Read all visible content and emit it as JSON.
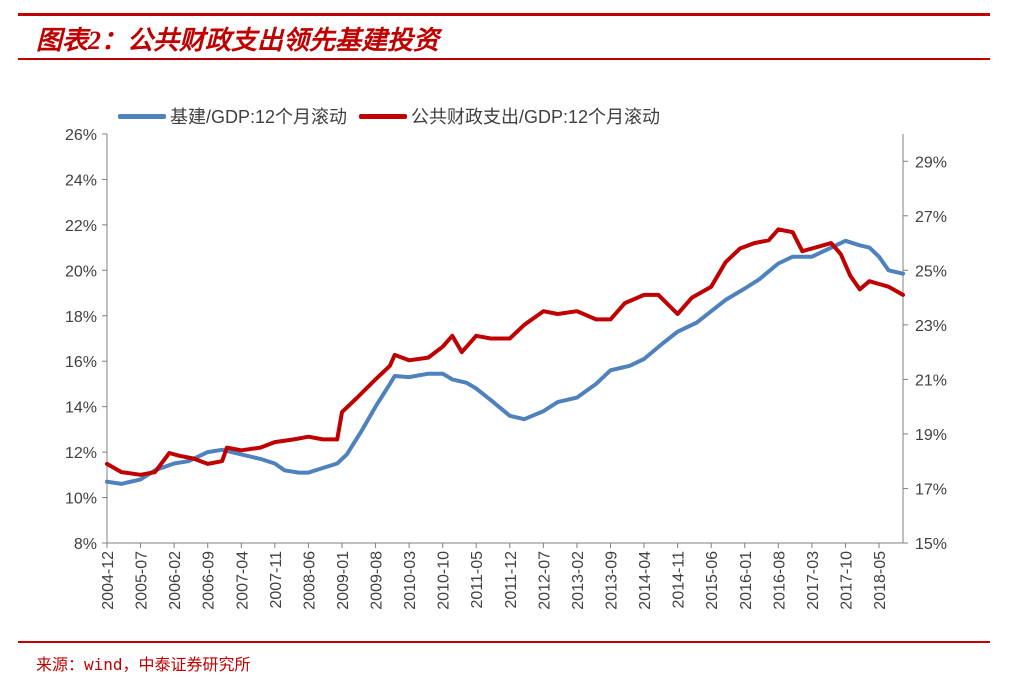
{
  "header": {
    "title": "图表2：公共财政支出领先基建投资"
  },
  "footer": {
    "source": "来源：wind，中泰证券研究所"
  },
  "colors": {
    "accent": "#c00000",
    "series_infra": "#4f81bd",
    "series_fiscal": "#c00000"
  },
  "chart_data": {
    "type": "line",
    "title": "",
    "xlabel": "",
    "ylabel": "",
    "legend_position": "top-left",
    "grid": false,
    "x_tick_labels": [
      "2004-12",
      "2005-07",
      "2006-02",
      "2006-09",
      "2007-04",
      "2007-11",
      "2008-06",
      "2009-01",
      "2009-08",
      "2010-03",
      "2010-10",
      "2011-05",
      "2011-12",
      "2012-07",
      "2013-02",
      "2013-09",
      "2014-04",
      "2014-11",
      "2015-06",
      "2016-01",
      "2016-08",
      "2017-03",
      "2017-10",
      "2018-05"
    ],
    "x_range": [
      "2004-12",
      "2018-10"
    ],
    "y_left": {
      "ticks": [
        "8%",
        "10%",
        "12%",
        "14%",
        "16%",
        "18%",
        "20%",
        "22%",
        "24%",
        "26%"
      ],
      "lim": [
        8,
        26
      ]
    },
    "y_right": {
      "ticks": [
        "15%",
        "17%",
        "19%",
        "21%",
        "23%",
        "25%",
        "27%",
        "29%"
      ],
      "lim": [
        15,
        30
      ]
    },
    "series": [
      {
        "name": "基建/GDP:12个月滚动",
        "axis": "left",
        "points": [
          [
            "2004-12",
            10.7
          ],
          [
            "2005-03",
            10.6
          ],
          [
            "2005-07",
            10.8
          ],
          [
            "2005-10",
            11.2
          ],
          [
            "2006-02",
            11.5
          ],
          [
            "2006-05",
            11.6
          ],
          [
            "2006-09",
            12.0
          ],
          [
            "2006-12",
            12.1
          ],
          [
            "2007-04",
            11.9
          ],
          [
            "2007-08",
            11.7
          ],
          [
            "2007-11",
            11.5
          ],
          [
            "2008-01",
            11.2
          ],
          [
            "2008-04",
            11.1
          ],
          [
            "2008-06",
            11.1
          ],
          [
            "2008-09",
            11.3
          ],
          [
            "2008-12",
            11.5
          ],
          [
            "2009-02",
            11.9
          ],
          [
            "2009-05",
            12.9
          ],
          [
            "2009-08",
            14.0
          ],
          [
            "2009-11",
            15.0
          ],
          [
            "2009-12",
            15.35
          ],
          [
            "2010-03",
            15.3
          ],
          [
            "2010-07",
            15.45
          ],
          [
            "2010-10",
            15.45
          ],
          [
            "2010-12",
            15.2
          ],
          [
            "2011-03",
            15.05
          ],
          [
            "2011-05",
            14.8
          ],
          [
            "2011-08",
            14.3
          ],
          [
            "2011-12",
            13.6
          ],
          [
            "2012-03",
            13.45
          ],
          [
            "2012-07",
            13.8
          ],
          [
            "2012-10",
            14.2
          ],
          [
            "2013-02",
            14.4
          ],
          [
            "2013-06",
            15.0
          ],
          [
            "2013-09",
            15.6
          ],
          [
            "2014-01",
            15.8
          ],
          [
            "2014-04",
            16.1
          ],
          [
            "2014-08",
            16.8
          ],
          [
            "2014-11",
            17.3
          ],
          [
            "2015-03",
            17.7
          ],
          [
            "2015-06",
            18.2
          ],
          [
            "2015-09",
            18.7
          ],
          [
            "2016-01",
            19.2
          ],
          [
            "2016-04",
            19.6
          ],
          [
            "2016-08",
            20.3
          ],
          [
            "2016-11",
            20.6
          ],
          [
            "2017-03",
            20.6
          ],
          [
            "2017-06",
            20.9
          ],
          [
            "2017-10",
            21.3
          ],
          [
            "2018-01",
            21.1
          ],
          [
            "2018-03",
            21.0
          ],
          [
            "2018-05",
            20.6
          ],
          [
            "2018-07",
            20.0
          ],
          [
            "2018-10",
            19.85
          ]
        ]
      },
      {
        "name": "公共财政支出/GDP:12个月滚动",
        "axis": "right",
        "points": [
          [
            "2004-12",
            17.9
          ],
          [
            "2005-03",
            17.6
          ],
          [
            "2005-07",
            17.5
          ],
          [
            "2005-10",
            17.6
          ],
          [
            "2006-01",
            18.3
          ],
          [
            "2006-03",
            18.2
          ],
          [
            "2006-06",
            18.1
          ],
          [
            "2006-09",
            17.9
          ],
          [
            "2006-12",
            18.0
          ],
          [
            "2007-01",
            18.5
          ],
          [
            "2007-04",
            18.4
          ],
          [
            "2007-08",
            18.5
          ],
          [
            "2007-11",
            18.7
          ],
          [
            "2008-03",
            18.8
          ],
          [
            "2008-06",
            18.9
          ],
          [
            "2008-09",
            18.8
          ],
          [
            "2008-12",
            18.8
          ],
          [
            "2009-01",
            19.8
          ],
          [
            "2009-04",
            20.3
          ],
          [
            "2009-08",
            21.0
          ],
          [
            "2009-11",
            21.5
          ],
          [
            "2009-12",
            21.9
          ],
          [
            "2010-03",
            21.7
          ],
          [
            "2010-07",
            21.8
          ],
          [
            "2010-10",
            22.2
          ],
          [
            "2010-12",
            22.6
          ],
          [
            "2011-02",
            22.0
          ],
          [
            "2011-05",
            22.6
          ],
          [
            "2011-08",
            22.5
          ],
          [
            "2011-12",
            22.5
          ],
          [
            "2012-03",
            23.0
          ],
          [
            "2012-07",
            23.5
          ],
          [
            "2012-10",
            23.4
          ],
          [
            "2013-02",
            23.5
          ],
          [
            "2013-06",
            23.2
          ],
          [
            "2013-09",
            23.2
          ],
          [
            "2013-12",
            23.8
          ],
          [
            "2014-04",
            24.1
          ],
          [
            "2014-07",
            24.1
          ],
          [
            "2014-11",
            23.4
          ],
          [
            "2015-02",
            24.0
          ],
          [
            "2015-06",
            24.4
          ],
          [
            "2015-09",
            25.3
          ],
          [
            "2015-12",
            25.8
          ],
          [
            "2016-03",
            26.0
          ],
          [
            "2016-06",
            26.1
          ],
          [
            "2016-08",
            26.5
          ],
          [
            "2016-11",
            26.4
          ],
          [
            "2017-01",
            25.7
          ],
          [
            "2017-03",
            25.8
          ],
          [
            "2017-05",
            25.9
          ],
          [
            "2017-07",
            26.0
          ],
          [
            "2017-09",
            25.6
          ],
          [
            "2017-11",
            24.8
          ],
          [
            "2018-01",
            24.3
          ],
          [
            "2018-03",
            24.6
          ],
          [
            "2018-05",
            24.5
          ],
          [
            "2018-07",
            24.4
          ],
          [
            "2018-10",
            24.1
          ]
        ]
      }
    ]
  }
}
